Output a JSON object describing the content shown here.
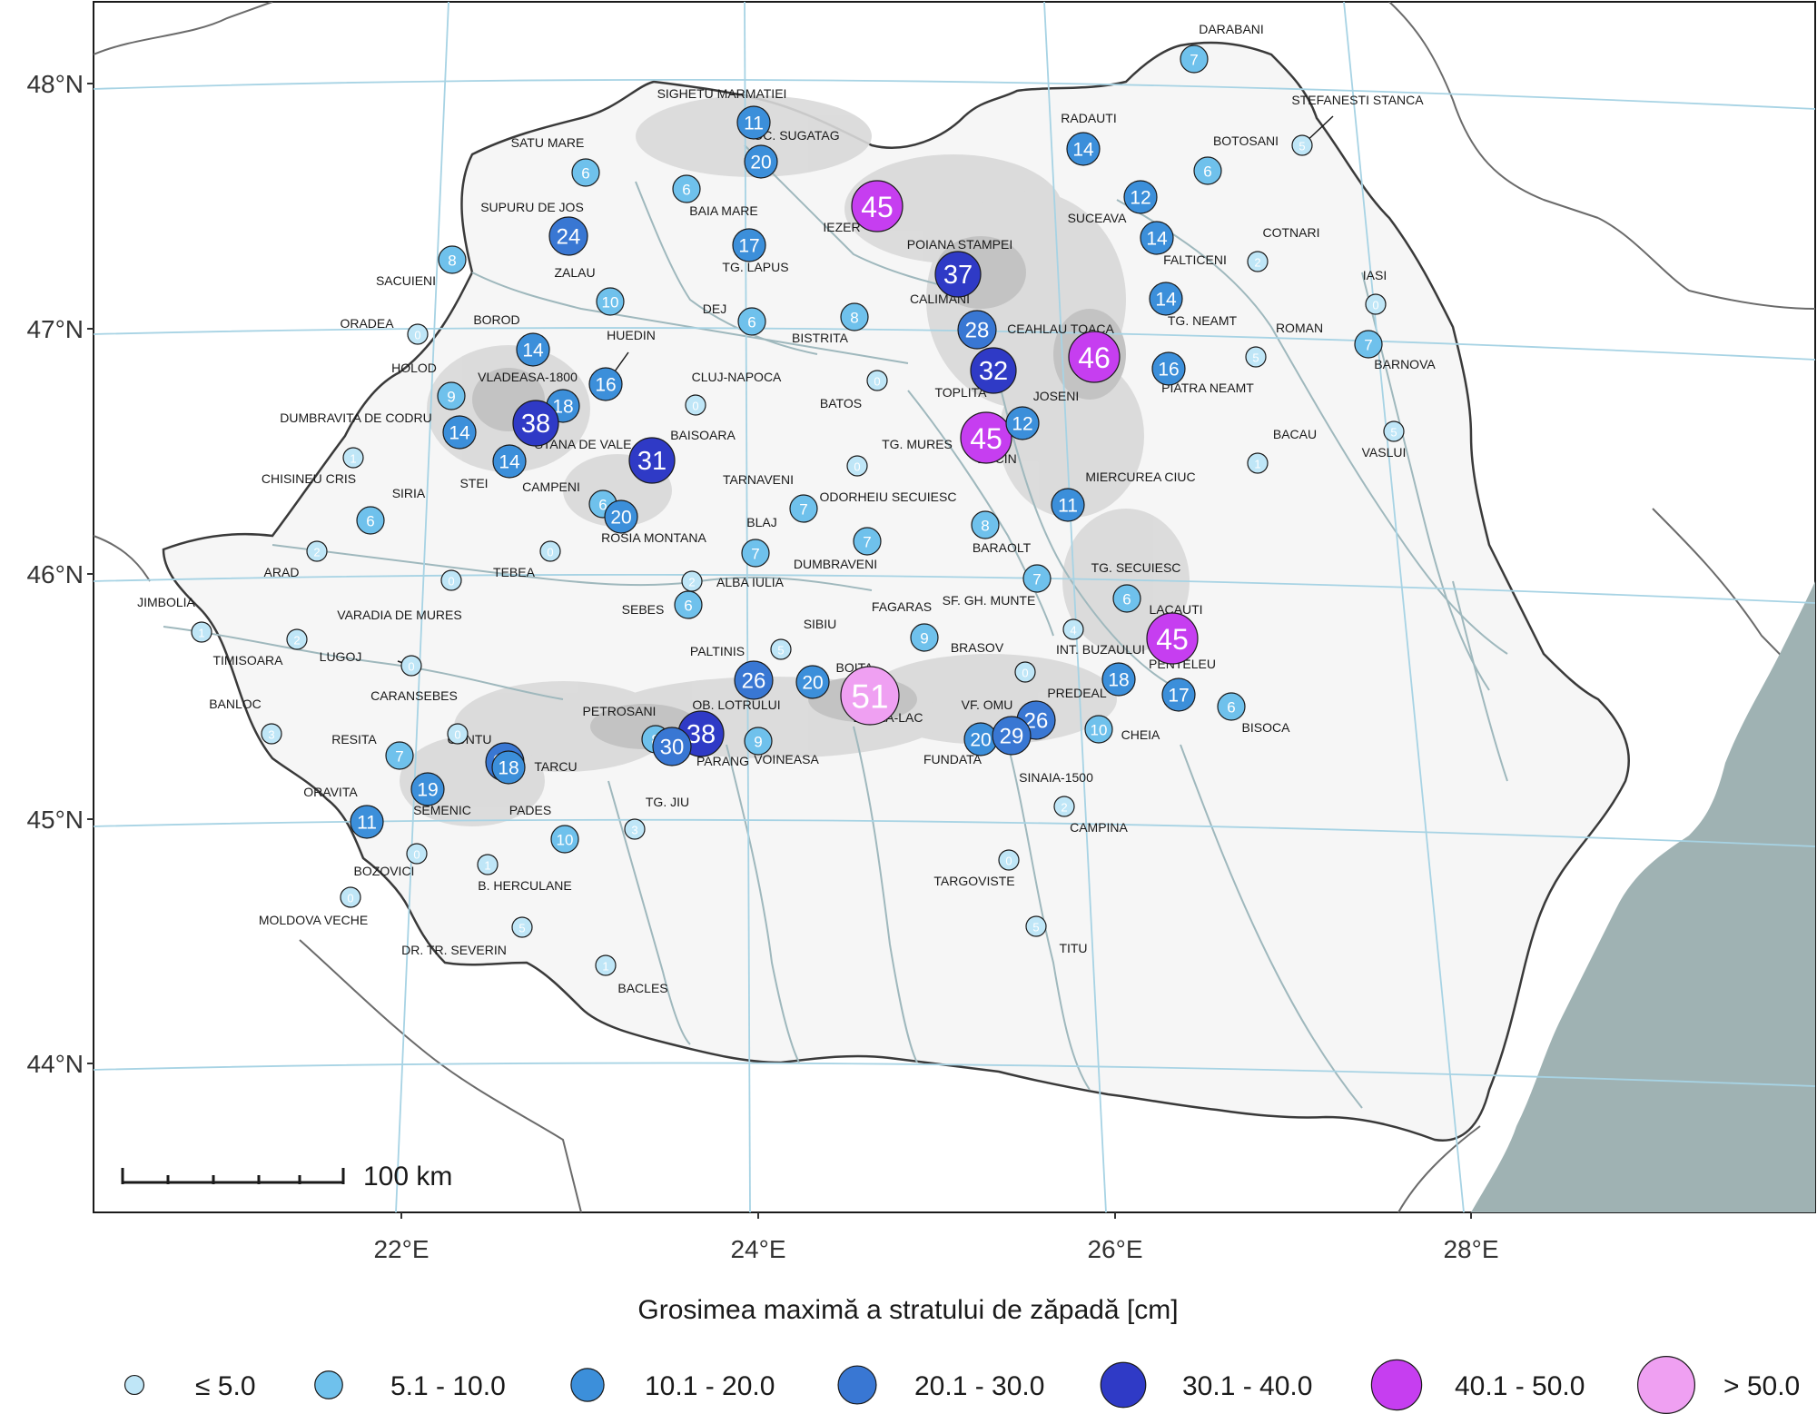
{
  "map": {
    "lat_labels": [
      "48°N",
      "47°N",
      "46°N",
      "45°N",
      "44°N"
    ],
    "lon_labels": [
      "22°E",
      "24°E",
      "26°E",
      "28°E"
    ],
    "scale_bar_label": "100 km",
    "legend_title": "Grosimea maximă a stratului de zăpadă [cm]",
    "legend": [
      {
        "label": "≤ 5.0",
        "color": "#bfe6f7"
      },
      {
        "label": "5.1 - 10.0",
        "color": "#6fc1ec"
      },
      {
        "label": "10.1 - 20.0",
        "color": "#3c8fda"
      },
      {
        "label": "20.1 - 30.0",
        "color": "#3977d3"
      },
      {
        "label": "30.1 - 40.0",
        "color": "#2f3ac6"
      },
      {
        "label": "40.1 - 50.0",
        "color": "#c63ef0"
      },
      {
        "label": "> 50.0",
        "color": "#efa0f2"
      }
    ],
    "colors": {
      "land": "#f6f6f6",
      "mountain": "#d9d9d9",
      "sea": "#9fb2b3",
      "grid": "#a7d3e4",
      "border": "#3a3a3a",
      "river": "#9fb8bd"
    },
    "stations": [
      {
        "name": "SIGHETU MARMATIEI",
        "value": "11"
      },
      {
        "name": "OC. SUGATAG",
        "value": "20"
      },
      {
        "name": "SATU MARE",
        "value": "6"
      },
      {
        "name": "BAIA MARE",
        "value": "6"
      },
      {
        "name": "IEZER",
        "value": "45"
      },
      {
        "name": "SUPURU DE JOS",
        "value": "24"
      },
      {
        "name": "TG. LAPUS",
        "value": "17"
      },
      {
        "name": "SACUIENI",
        "value": "8"
      },
      {
        "name": "ZALAU",
        "value": "10"
      },
      {
        "name": "DEJ",
        "value": "6"
      },
      {
        "name": "BISTRITA",
        "value": "8"
      },
      {
        "name": "POIANA STAMPEI",
        "value": "37"
      },
      {
        "name": "CALIMANI",
        "value": "28"
      },
      {
        "name": "ORADEA",
        "value": "0"
      },
      {
        "name": "BOROD",
        "value": "14"
      },
      {
        "name": "HUEDIN",
        "value": "16"
      },
      {
        "name": "CLUJ-NAPOCA",
        "value": "0"
      },
      {
        "name": "BATOS",
        "value": "0"
      },
      {
        "name": "CEAHLAU TOACA",
        "value": "46"
      },
      {
        "name": "TOPLITA",
        "value": "32"
      },
      {
        "name": "HOLOD",
        "value": "9"
      },
      {
        "name": "VLADEASA-1800",
        "value": "18"
      },
      {
        "name": "STANA DE VALE",
        "value": "38"
      },
      {
        "name": "DUMBRAVITA DE CODRU",
        "value": "14"
      },
      {
        "name": "BAISOARA",
        "value": "31"
      },
      {
        "name": "TG. MURES",
        "value": "45"
      },
      {
        "name": "JOSENI",
        "value": "12"
      },
      {
        "name": "CHISINEU CRIS",
        "value": "1"
      },
      {
        "name": "STEI",
        "value": "14"
      },
      {
        "name": "TARNAVENI",
        "value": "0"
      },
      {
        "name": "BUCIN",
        "value": ""
      },
      {
        "name": "SIRIA",
        "value": "6"
      },
      {
        "name": "CAMPENI",
        "value": "6"
      },
      {
        "name": "ROSIA MONTANA",
        "value": "20"
      },
      {
        "name": "ODORHEIU SECUIESC",
        "value": "7"
      },
      {
        "name": "MIERCUREA CIUC",
        "value": "11"
      },
      {
        "name": "BLAJ",
        "value": "7"
      },
      {
        "name": "BARAOLT",
        "value": "8"
      },
      {
        "name": "ARAD",
        "value": "2"
      },
      {
        "name": "TEBEA",
        "value": "0"
      },
      {
        "name": "DUMBRAVENI",
        "value": "7"
      },
      {
        "name": "ALBA IULIA",
        "value": "2"
      },
      {
        "name": "SF. GH. MUNTE",
        "value": "7"
      },
      {
        "name": "TG. SECUIESC",
        "value": "6"
      },
      {
        "name": "JIMBOLIA",
        "value": "1"
      },
      {
        "name": "VARADIA DE MURES",
        "value": "0"
      },
      {
        "name": "SEBES",
        "value": "6"
      },
      {
        "name": "LACAUTI",
        "value": "45"
      },
      {
        "name": "TIMISOARA",
        "value": "2"
      },
      {
        "name": "LUGOJ",
        "value": "0"
      },
      {
        "name": "SIBIU",
        "value": "5"
      },
      {
        "name": "FAGARAS",
        "value": "9"
      },
      {
        "name": "INT. BUZAULUI",
        "value": "4"
      },
      {
        "name": "PALTINIS",
        "value": "26"
      },
      {
        "name": "BOITA",
        "value": "20"
      },
      {
        "name": "BRASOV",
        "value": "0"
      },
      {
        "name": "BALEA-LAC",
        "value": "51"
      },
      {
        "name": "PREDEAL",
        "value": "18"
      },
      {
        "name": "PENTELEU",
        "value": "17"
      },
      {
        "name": "BANLOC",
        "value": "3"
      },
      {
        "name": "CARANSEBES",
        "value": "0"
      },
      {
        "name": "PETROSANI",
        "value": "8"
      },
      {
        "name": "OB. LOTRULUI",
        "value": "38"
      },
      {
        "name": "VF. OMU",
        "value": "26"
      },
      {
        "name": "BISOCA",
        "value": "6"
      },
      {
        "name": "CUNTU",
        "value": "30"
      },
      {
        "name": "TARCU",
        "value": "18"
      },
      {
        "name": "RESITA",
        "value": "7"
      },
      {
        "name": "PARANG",
        "value": "30"
      },
      {
        "name": "VOINEASA",
        "value": "9"
      },
      {
        "name": "FUNDATA",
        "value": "20"
      },
      {
        "name": "SINAIA-1500",
        "value": "29"
      },
      {
        "name": "CHEIA",
        "value": "10"
      },
      {
        "name": "SEMENIC",
        "value": "19"
      },
      {
        "name": "ORAVITA",
        "value": "11"
      },
      {
        "name": "PADES",
        "value": "10"
      },
      {
        "name": "TG. JIU",
        "value": "3"
      },
      {
        "name": "CAMPINA",
        "value": "2"
      },
      {
        "name": "BOZOVICI",
        "value": "0"
      },
      {
        "name": "B. HERCULANE",
        "value": "1"
      },
      {
        "name": "TARGOVISTE",
        "value": "0"
      },
      {
        "name": "MOLDOVA VECHE",
        "value": "0"
      },
      {
        "name": "DR. TR. SEVERIN",
        "value": "5"
      },
      {
        "name": "TITU",
        "value": "5"
      },
      {
        "name": "BACLES",
        "value": "1"
      },
      {
        "name": "DARABANI",
        "value": "7"
      },
      {
        "name": "STEFANESTI STANCA",
        "value": "5"
      },
      {
        "name": "RADAUTI",
        "value": "14"
      },
      {
        "name": "BOTOSANI",
        "value": "6"
      },
      {
        "name": "SUCEAVA",
        "value": "12"
      },
      {
        "name": "COTNARI",
        "value": "2"
      },
      {
        "name": "FALTICENI",
        "value": "14"
      },
      {
        "name": "IASI",
        "value": "0"
      },
      {
        "name": "TG. NEAMT",
        "value": "14"
      },
      {
        "name": "ROMAN",
        "value": "5"
      },
      {
        "name": "BARNOVA",
        "value": "7"
      },
      {
        "name": "PIATRA NEAMT",
        "value": "16"
      },
      {
        "name": "BACAU",
        "value": "1"
      },
      {
        "name": "VASLUI",
        "value": "5"
      }
    ]
  }
}
